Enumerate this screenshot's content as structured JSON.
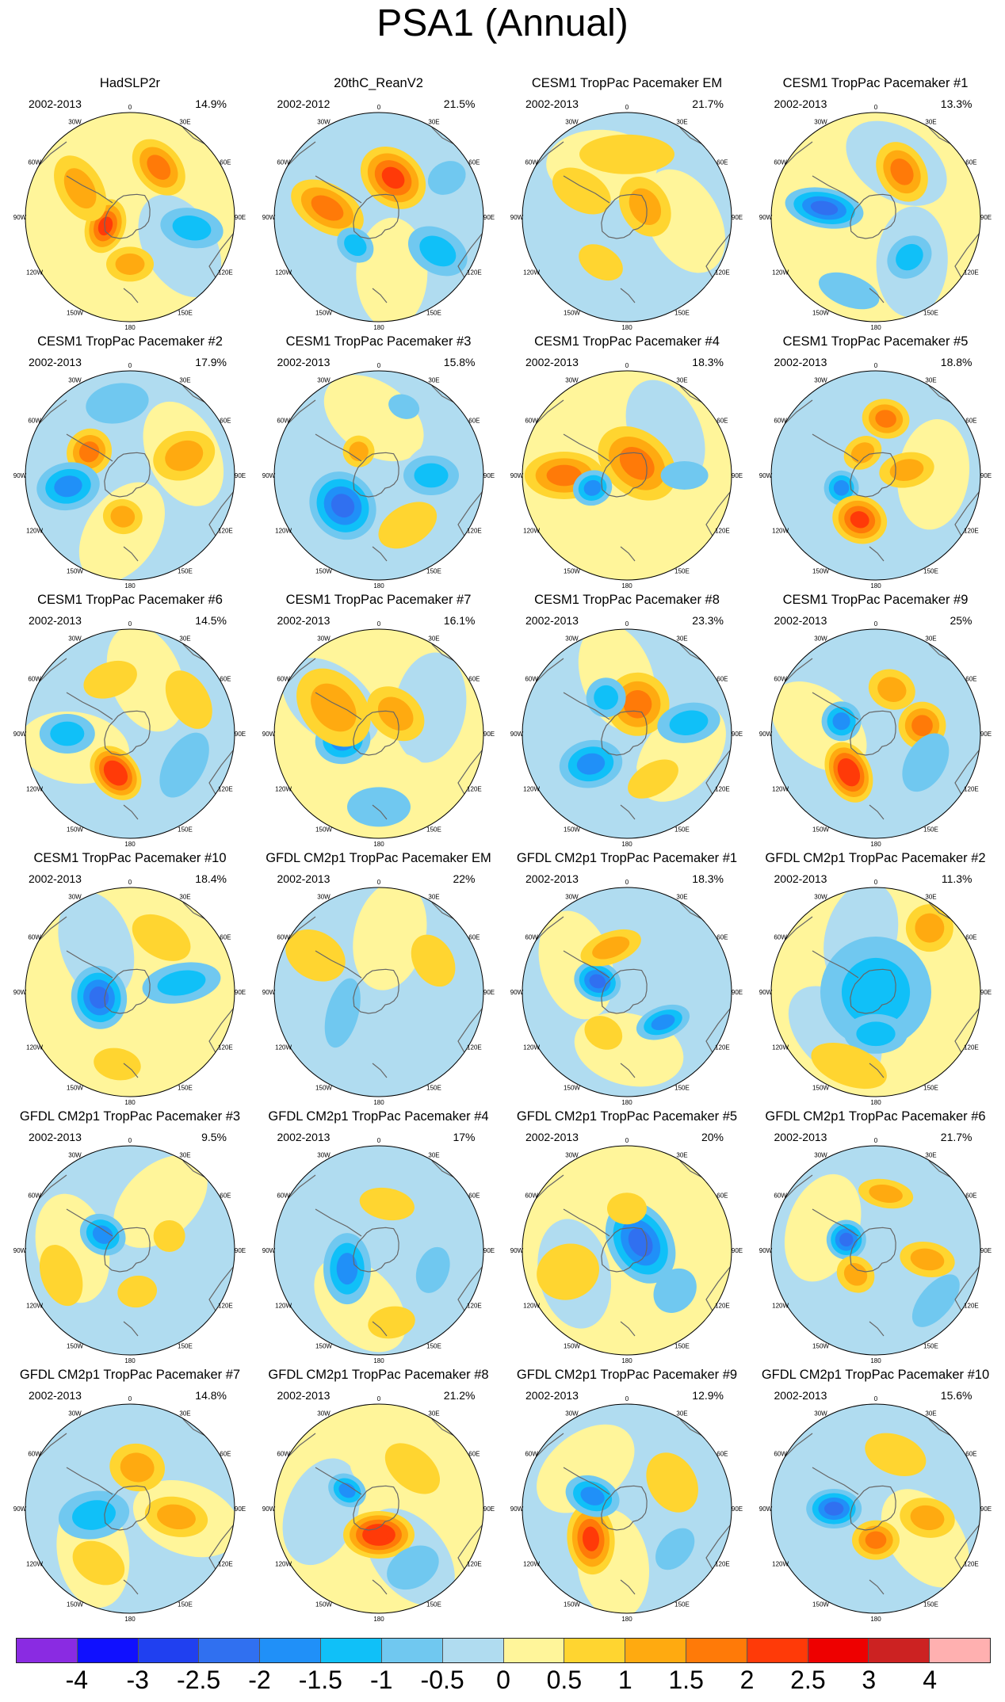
{
  "chart_data": {
    "type": "heatmap",
    "title": "PSA1 (Annual)",
    "projection": "south polar stereographic",
    "longitude_labels": [
      "0",
      "30E",
      "60E",
      "90E",
      "120E",
      "150E",
      "180",
      "150W",
      "120W",
      "90W",
      "60W",
      "30W"
    ],
    "colorbar": {
      "levels": [
        "-4",
        "-3",
        "-2.5",
        "-2",
        "-1.5",
        "-1",
        "-0.5",
        "0",
        "0.5",
        "1",
        "1.5",
        "2",
        "2.5",
        "3",
        "4"
      ],
      "colors": [
        "#8a2be2",
        "#1010ff",
        "#2040f0",
        "#3070f0",
        "#2090f8",
        "#10c0f8",
        "#70c8f0",
        "#b0dcf0",
        "#fff59a",
        "#ffd530",
        "#ffaa10",
        "#ff7a08",
        "#ff3a08",
        "#ee0000",
        "#cc2222",
        "#ffb0b0"
      ]
    },
    "panels": [
      {
        "title": "HadSLP2r",
        "period": "2002-2013",
        "percent": "14.9%"
      },
      {
        "title": "20thC_ReanV2",
        "period": "2002-2012",
        "percent": "21.5%"
      },
      {
        "title": "CESM1 TropPac Pacemaker EM",
        "period": "2002-2013",
        "percent": "21.7%"
      },
      {
        "title": "CESM1 TropPac Pacemaker #1",
        "period": "2002-2013",
        "percent": "13.3%"
      },
      {
        "title": "CESM1 TropPac Pacemaker #2",
        "period": "2002-2013",
        "percent": "17.9%"
      },
      {
        "title": "CESM1 TropPac Pacemaker #3",
        "period": "2002-2013",
        "percent": "15.8%"
      },
      {
        "title": "CESM1 TropPac Pacemaker #4",
        "period": "2002-2013",
        "percent": "18.3%"
      },
      {
        "title": "CESM1 TropPac Pacemaker #5",
        "period": "2002-2013",
        "percent": "18.8%"
      },
      {
        "title": "CESM1 TropPac Pacemaker #6",
        "period": "2002-2013",
        "percent": "14.5%"
      },
      {
        "title": "CESM1 TropPac Pacemaker #7",
        "period": "2002-2013",
        "percent": "16.1%"
      },
      {
        "title": "CESM1 TropPac Pacemaker #8",
        "period": "2002-2013",
        "percent": "23.3%"
      },
      {
        "title": "CESM1 TropPac Pacemaker #9",
        "period": "2002-2013",
        "percent": "25%"
      },
      {
        "title": "CESM1 TropPac Pacemaker #10",
        "period": "2002-2013",
        "percent": "18.4%"
      },
      {
        "title": "GFDL CM2p1 TropPac Pacemaker EM",
        "period": "2002-2013",
        "percent": "22%"
      },
      {
        "title": "GFDL CM2p1 TropPac Pacemaker #1",
        "period": "2002-2013",
        "percent": "18.3%"
      },
      {
        "title": "GFDL CM2p1 TropPac Pacemaker #2",
        "period": "2002-2013",
        "percent": "11.3%"
      },
      {
        "title": "GFDL CM2p1 TropPac Pacemaker #3",
        "period": "2002-2013",
        "percent": "9.5%"
      },
      {
        "title": "GFDL CM2p1 TropPac Pacemaker #4",
        "period": "2002-2013",
        "percent": "17%"
      },
      {
        "title": "GFDL CM2p1 TropPac Pacemaker #5",
        "period": "2002-2013",
        "percent": "20%"
      },
      {
        "title": "GFDL CM2p1 TropPac Pacemaker #6",
        "period": "2002-2013",
        "percent": "21.7%"
      },
      {
        "title": "GFDL CM2p1 TropPac Pacemaker #7",
        "period": "2002-2013",
        "percent": "14.8%"
      },
      {
        "title": "GFDL CM2p1 TropPac Pacemaker #8",
        "period": "2002-2013",
        "percent": "21.2%"
      },
      {
        "title": "GFDL CM2p1 TropPac Pacemaker #9",
        "period": "2002-2013",
        "percent": "12.9%"
      },
      {
        "title": "GFDL CM2p1 TropPac Pacemaker #10",
        "period": "2002-2013",
        "percent": "15.6%"
      }
    ]
  }
}
